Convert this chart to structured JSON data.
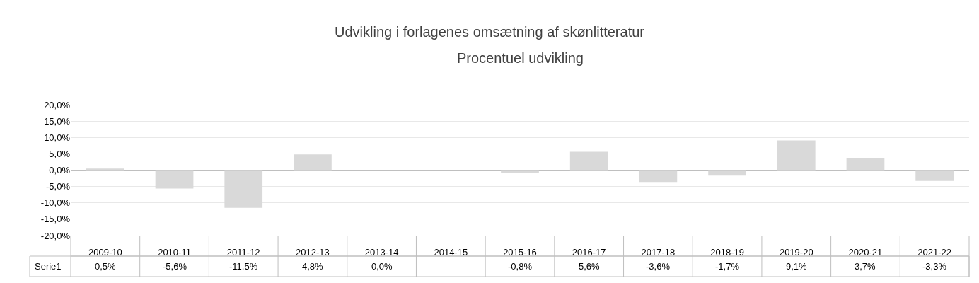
{
  "chart_data": {
    "type": "bar",
    "title": "Udvikling i forlagenes omsætning af skønlitteratur",
    "subtitle": "Procentuel udvikling",
    "categories": [
      "2009-10",
      "2010-11",
      "2011-12",
      "2012-13",
      "2013-14",
      "2014-15",
      "2015-16",
      "2016-17",
      "2017-18",
      "2018-19",
      "2019-20",
      "2020-21",
      "2021-22"
    ],
    "series": [
      {
        "name": "Serie1",
        "color": "#d9d9d9",
        "values": [
          0.5,
          -5.6,
          -11.5,
          4.8,
          0.0,
          null,
          -0.8,
          5.6,
          -3.6,
          -1.7,
          9.1,
          3.7,
          -3.3
        ],
        "value_labels": [
          "0,5%",
          "-5,6%",
          "-11,5%",
          "4,8%",
          "0,0%",
          null,
          "-0,8%",
          "5,6%",
          "-3,6%",
          "-1,7%",
          "9,1%",
          "3,7%",
          "-3,3%"
        ]
      }
    ],
    "ylim": [
      -20,
      20
    ],
    "yticks": [
      {
        "value": -20,
        "label": "-20,0%"
      },
      {
        "value": -15,
        "label": "-15,0%"
      },
      {
        "value": -10,
        "label": "-10,0%"
      },
      {
        "value": -5,
        "label": "-5,0%"
      },
      {
        "value": 0,
        "label": "0,0%"
      },
      {
        "value": 5,
        "label": "5,0%"
      },
      {
        "value": 10,
        "label": "10,0%"
      },
      {
        "value": 15,
        "label": "15,0%"
      },
      {
        "value": 20,
        "label": "20,0%"
      }
    ],
    "grid": true
  }
}
